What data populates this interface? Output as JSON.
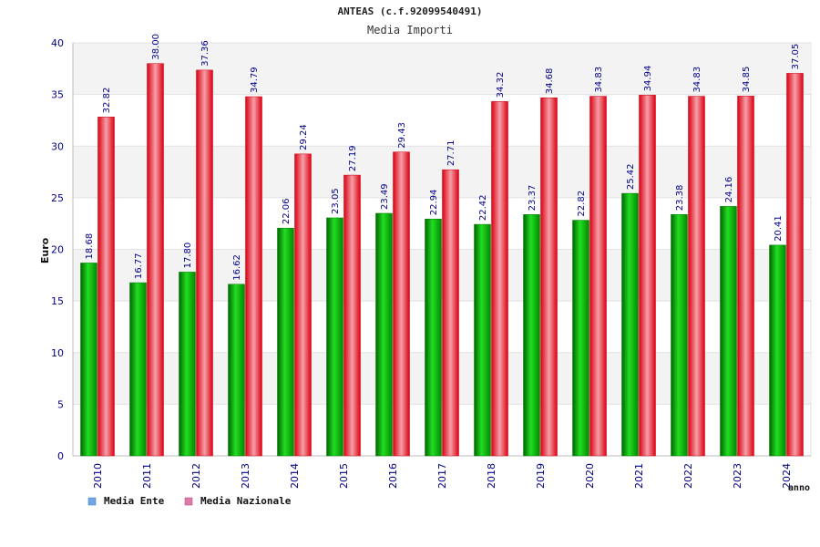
{
  "chart_data": {
    "type": "bar",
    "title": "ANTEAS (c.f.92099540491)",
    "subtitle": "Media Importi",
    "xlabel": "anno",
    "ylabel": "Euro",
    "ylim": [
      0,
      40
    ],
    "yticks": [
      0,
      5,
      10,
      15,
      20,
      25,
      30,
      35,
      40
    ],
    "grid": true,
    "legend_position": "bottom-left",
    "categories": [
      "2010",
      "2011",
      "2012",
      "2013",
      "2014",
      "2015",
      "2016",
      "2017",
      "2018",
      "2019",
      "2020",
      "2021",
      "2022",
      "2023",
      "2024"
    ],
    "series": [
      {
        "name": "Media Ente",
        "color": "#00aa00",
        "legend_color": "#6fa8e8",
        "values": [
          18.68,
          16.77,
          17.8,
          16.62,
          22.06,
          23.05,
          23.49,
          22.94,
          22.42,
          23.37,
          22.82,
          25.42,
          23.38,
          24.16,
          20.41
        ],
        "labels": [
          "18.68",
          "16.77",
          "17.80",
          "16.62",
          "22.06",
          "23.05",
          "23.49",
          "22.94",
          "22.42",
          "23.37",
          "22.82",
          "25.42",
          "23.38",
          "24.16",
          "20.41"
        ]
      },
      {
        "name": "Media Nazionale",
        "color": "#ee1122",
        "legend_color": "#e07aa8",
        "values": [
          32.82,
          38.0,
          37.36,
          34.79,
          29.24,
          27.19,
          29.43,
          27.71,
          34.32,
          34.68,
          34.83,
          34.94,
          34.83,
          34.85,
          37.05
        ],
        "labels": [
          "32.82",
          "38.00",
          "37.36",
          "34.79",
          "29.24",
          "27.19",
          "29.43",
          "27.71",
          "34.32",
          "34.68",
          "34.83",
          "34.94",
          "34.83",
          "34.85",
          "37.05"
        ]
      }
    ]
  }
}
